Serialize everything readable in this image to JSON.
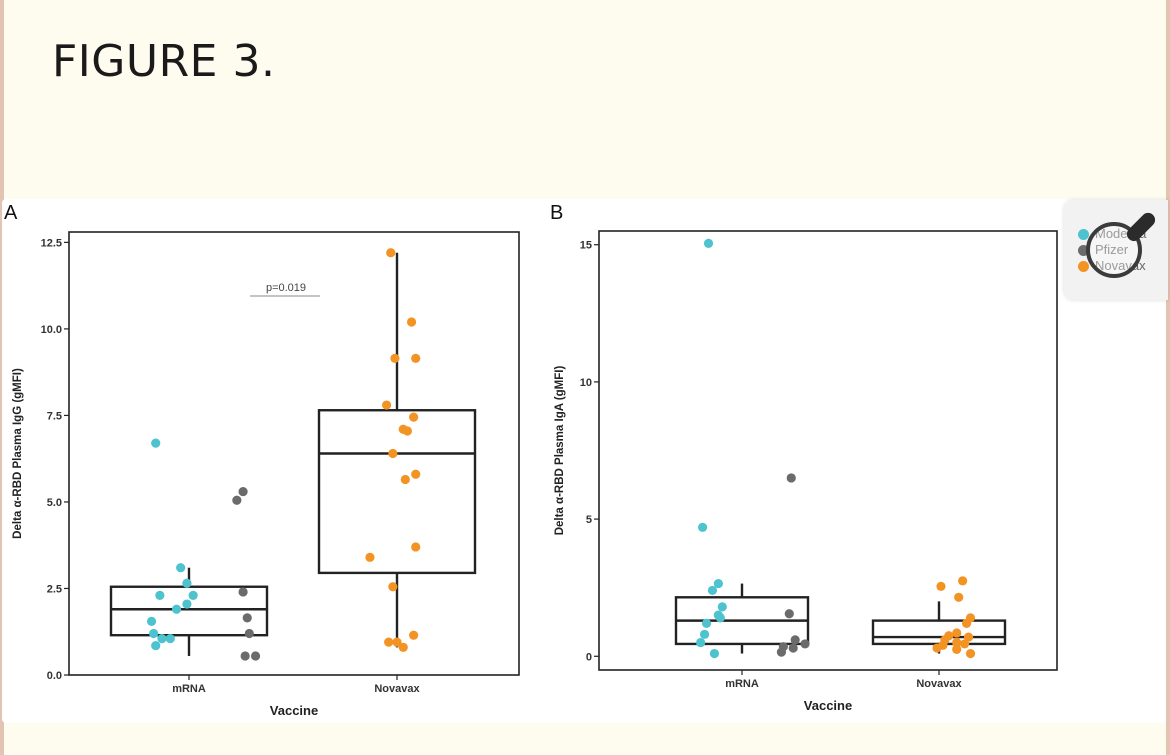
{
  "page": {
    "title": "FIGURE 3."
  },
  "legend": {
    "items": [
      "Moderna",
      "Pfizer",
      "Novavax"
    ]
  },
  "colors": {
    "moderna": "#4cc3cf",
    "pfizer": "#6b6b6b",
    "novavax": "#f39323",
    "box": "#222222"
  },
  "chart_data": [
    {
      "panel": "A",
      "type": "box+scatter",
      "xlabel": "Vaccine",
      "ylabel": "Delta α-RBD Plasma IgG (gMFI)",
      "categories": [
        "mRNA",
        "Novavax"
      ],
      "ylim": [
        0,
        12.8
      ],
      "yticks": [
        0,
        2.5,
        5,
        7.5,
        10,
        12.5
      ],
      "ytick_labels": [
        "0.0",
        "2.5",
        "5.0",
        "7.5",
        "10.0",
        "12.5"
      ],
      "annotation": "p=0.019",
      "boxes": [
        {
          "category": "mRNA",
          "whisker_low": 0.55,
          "q1": 1.15,
          "median": 1.9,
          "q3": 2.55,
          "whisker_high": 3.1
        },
        {
          "category": "Novavax",
          "whisker_low": 0.8,
          "q1": 2.95,
          "median": 6.4,
          "q3": 7.65,
          "whisker_high": 12.2
        }
      ],
      "points": [
        {
          "group": "Moderna",
          "category": "mRNA",
          "jitter": -0.16,
          "y": 6.7
        },
        {
          "group": "Moderna",
          "category": "mRNA",
          "jitter": -0.04,
          "y": 3.1
        },
        {
          "group": "Moderna",
          "category": "mRNA",
          "jitter": -0.01,
          "y": 2.65
        },
        {
          "group": "Moderna",
          "category": "mRNA",
          "jitter": -0.14,
          "y": 2.3
        },
        {
          "group": "Moderna",
          "category": "mRNA",
          "jitter": 0.02,
          "y": 2.3
        },
        {
          "group": "Moderna",
          "category": "mRNA",
          "jitter": -0.01,
          "y": 2.05
        },
        {
          "group": "Moderna",
          "category": "mRNA",
          "jitter": -0.06,
          "y": 1.9
        },
        {
          "group": "Moderna",
          "category": "mRNA",
          "jitter": -0.18,
          "y": 1.55
        },
        {
          "group": "Moderna",
          "category": "mRNA",
          "jitter": -0.17,
          "y": 1.2
        },
        {
          "group": "Moderna",
          "category": "mRNA",
          "jitter": -0.13,
          "y": 1.05
        },
        {
          "group": "Moderna",
          "category": "mRNA",
          "jitter": -0.09,
          "y": 1.05
        },
        {
          "group": "Moderna",
          "category": "mRNA",
          "jitter": -0.16,
          "y": 0.85
        },
        {
          "group": "Pfizer",
          "category": "mRNA",
          "jitter": 0.26,
          "y": 5.3
        },
        {
          "group": "Pfizer",
          "category": "mRNA",
          "jitter": 0.23,
          "y": 5.05
        },
        {
          "group": "Pfizer",
          "category": "mRNA",
          "jitter": 0.26,
          "y": 2.4
        },
        {
          "group": "Pfizer",
          "category": "mRNA",
          "jitter": 0.28,
          "y": 1.65
        },
        {
          "group": "Pfizer",
          "category": "mRNA",
          "jitter": 0.29,
          "y": 1.2
        },
        {
          "group": "Pfizer",
          "category": "mRNA",
          "jitter": 0.27,
          "y": 0.55
        },
        {
          "group": "Pfizer",
          "category": "mRNA",
          "jitter": 0.32,
          "y": 0.55
        },
        {
          "group": "Novavax",
          "category": "Novavax",
          "jitter": -0.03,
          "y": 12.2
        },
        {
          "group": "Novavax",
          "category": "Novavax",
          "jitter": 0.07,
          "y": 10.2
        },
        {
          "group": "Novavax",
          "category": "Novavax",
          "jitter": -0.01,
          "y": 9.15
        },
        {
          "group": "Novavax",
          "category": "Novavax",
          "jitter": 0.09,
          "y": 9.15
        },
        {
          "group": "Novavax",
          "category": "Novavax",
          "jitter": -0.05,
          "y": 7.8
        },
        {
          "group": "Novavax",
          "category": "Novavax",
          "jitter": 0.08,
          "y": 7.45
        },
        {
          "group": "Novavax",
          "category": "Novavax",
          "jitter": 0.03,
          "y": 7.1
        },
        {
          "group": "Novavax",
          "category": "Novavax",
          "jitter": 0.05,
          "y": 7.05
        },
        {
          "group": "Novavax",
          "category": "Novavax",
          "jitter": -0.02,
          "y": 6.4
        },
        {
          "group": "Novavax",
          "category": "Novavax",
          "jitter": 0.09,
          "y": 5.8
        },
        {
          "group": "Novavax",
          "category": "Novavax",
          "jitter": 0.04,
          "y": 5.65
        },
        {
          "group": "Novavax",
          "category": "Novavax",
          "jitter": 0.09,
          "y": 3.7
        },
        {
          "group": "Novavax",
          "category": "Novavax",
          "jitter": -0.13,
          "y": 3.4
        },
        {
          "group": "Novavax",
          "category": "Novavax",
          "jitter": -0.02,
          "y": 2.55
        },
        {
          "group": "Novavax",
          "category": "Novavax",
          "jitter": 0.08,
          "y": 1.15
        },
        {
          "group": "Novavax",
          "category": "Novavax",
          "jitter": -0.04,
          "y": 0.95
        },
        {
          "group": "Novavax",
          "category": "Novavax",
          "jitter": 0.0,
          "y": 0.95
        },
        {
          "group": "Novavax",
          "category": "Novavax",
          "jitter": 0.03,
          "y": 0.8
        }
      ]
    },
    {
      "panel": "B",
      "type": "box+scatter",
      "xlabel": "Vaccine",
      "ylabel": "Delta α-RBD Plasma IgA (gMFI)",
      "categories": [
        "mRNA",
        "Novavax"
      ],
      "ylim": [
        -0.5,
        15.5
      ],
      "yticks": [
        0,
        5,
        10,
        15
      ],
      "ytick_labels": [
        "0",
        "5",
        "10",
        "15"
      ],
      "boxes": [
        {
          "category": "mRNA",
          "whisker_low": 0.1,
          "q1": 0.45,
          "median": 1.3,
          "q3": 2.15,
          "whisker_high": 2.65
        },
        {
          "category": "Novavax",
          "whisker_low": 0.1,
          "q1": 0.45,
          "median": 0.7,
          "q3": 1.3,
          "whisker_high": 2.0
        }
      ],
      "points": [
        {
          "group": "Moderna",
          "category": "mRNA",
          "jitter": -0.17,
          "y": 15.05
        },
        {
          "group": "Moderna",
          "category": "mRNA",
          "jitter": -0.2,
          "y": 4.7
        },
        {
          "group": "Moderna",
          "category": "mRNA",
          "jitter": -0.12,
          "y": 2.65
        },
        {
          "group": "Moderna",
          "category": "mRNA",
          "jitter": -0.15,
          "y": 2.4
        },
        {
          "group": "Moderna",
          "category": "mRNA",
          "jitter": -0.1,
          "y": 1.8
        },
        {
          "group": "Moderna",
          "category": "mRNA",
          "jitter": -0.12,
          "y": 1.5
        },
        {
          "group": "Moderna",
          "category": "mRNA",
          "jitter": -0.11,
          "y": 1.4
        },
        {
          "group": "Moderna",
          "category": "mRNA",
          "jitter": -0.18,
          "y": 1.2
        },
        {
          "group": "Moderna",
          "category": "mRNA",
          "jitter": -0.19,
          "y": 0.8
        },
        {
          "group": "Moderna",
          "category": "mRNA",
          "jitter": -0.21,
          "y": 0.5
        },
        {
          "group": "Moderna",
          "category": "mRNA",
          "jitter": -0.14,
          "y": 0.1
        },
        {
          "group": "Pfizer",
          "category": "mRNA",
          "jitter": 0.25,
          "y": 6.5
        },
        {
          "group": "Pfizer",
          "category": "mRNA",
          "jitter": 0.24,
          "y": 1.55
        },
        {
          "group": "Pfizer",
          "category": "mRNA",
          "jitter": 0.27,
          "y": 0.6
        },
        {
          "group": "Pfizer",
          "category": "mRNA",
          "jitter": 0.32,
          "y": 0.45
        },
        {
          "group": "Pfizer",
          "category": "mRNA",
          "jitter": 0.21,
          "y": 0.35
        },
        {
          "group": "Pfizer",
          "category": "mRNA",
          "jitter": 0.26,
          "y": 0.3
        },
        {
          "group": "Pfizer",
          "category": "mRNA",
          "jitter": 0.2,
          "y": 0.15
        },
        {
          "group": "Novavax",
          "category": "Novavax",
          "jitter": 0.12,
          "y": 2.75
        },
        {
          "group": "Novavax",
          "category": "Novavax",
          "jitter": 0.01,
          "y": 2.55
        },
        {
          "group": "Novavax",
          "category": "Novavax",
          "jitter": 0.1,
          "y": 2.15
        },
        {
          "group": "Novavax",
          "category": "Novavax",
          "jitter": 0.16,
          "y": 1.4
        },
        {
          "group": "Novavax",
          "category": "Novavax",
          "jitter": 0.14,
          "y": 1.2
        },
        {
          "group": "Novavax",
          "category": "Novavax",
          "jitter": 0.09,
          "y": 0.85
        },
        {
          "group": "Novavax",
          "category": "Novavax",
          "jitter": 0.05,
          "y": 0.75
        },
        {
          "group": "Novavax",
          "category": "Novavax",
          "jitter": 0.15,
          "y": 0.7
        },
        {
          "group": "Novavax",
          "category": "Novavax",
          "jitter": 0.03,
          "y": 0.6
        },
        {
          "group": "Novavax",
          "category": "Novavax",
          "jitter": 0.09,
          "y": 0.5
        },
        {
          "group": "Novavax",
          "category": "Novavax",
          "jitter": 0.13,
          "y": 0.45
        },
        {
          "group": "Novavax",
          "category": "Novavax",
          "jitter": 0.02,
          "y": 0.4
        },
        {
          "group": "Novavax",
          "category": "Novavax",
          "jitter": -0.01,
          "y": 0.3
        },
        {
          "group": "Novavax",
          "category": "Novavax",
          "jitter": 0.09,
          "y": 0.25
        },
        {
          "group": "Novavax",
          "category": "Novavax",
          "jitter": 0.16,
          "y": 0.1
        }
      ]
    }
  ]
}
